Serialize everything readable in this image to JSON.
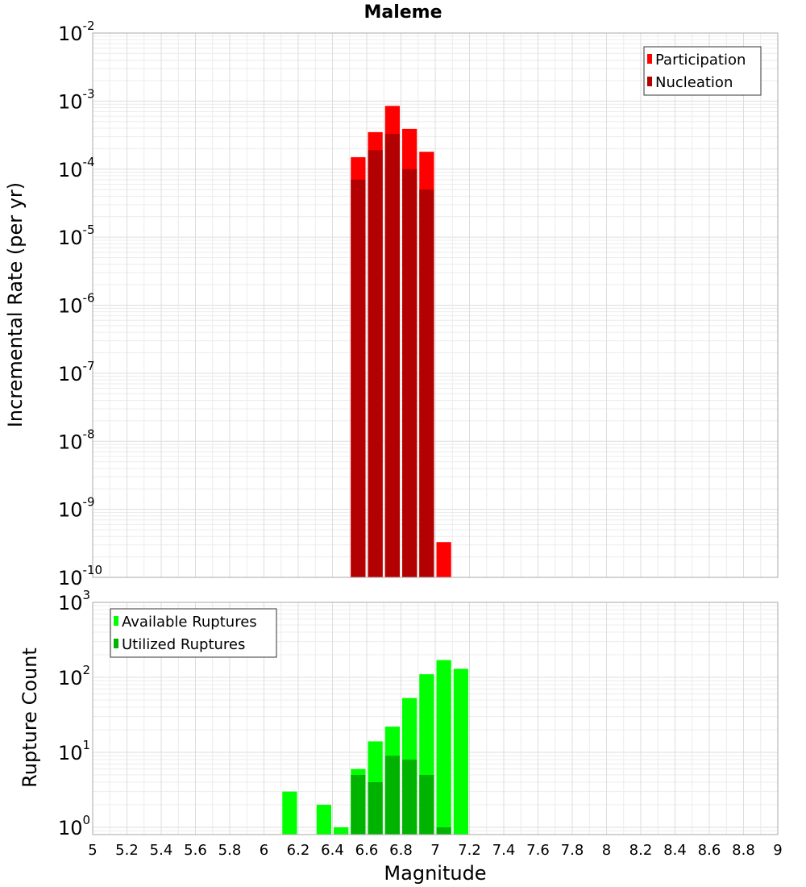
{
  "title": "Maleme",
  "colors": {
    "participation": "#ff0000",
    "nucleation": "#b30000",
    "available": "#00ff00",
    "utilized": "#00b300",
    "grid_minor": "#ececec",
    "grid_major": "#dddddd",
    "frame": "#aaaaaa"
  },
  "chart_data": [
    {
      "type": "bar",
      "title": "Maleme",
      "xlabel": "",
      "ylabel": "Incremental Rate (per yr)",
      "y_scale": "log",
      "ylim": [
        1e-10,
        0.01
      ],
      "xlim": [
        5,
        9
      ],
      "bin_width": 0.1,
      "grid": true,
      "legend_position": "top-right",
      "y_tick_exponents": [
        -2,
        -3,
        -4,
        -5,
        -6,
        -7,
        -8,
        -9,
        -10
      ],
      "series": [
        {
          "name": "Participation",
          "x": [
            6.55,
            6.65,
            6.75,
            6.85,
            6.95,
            7.05
          ],
          "values": [
            0.00015,
            0.00035,
            0.00085,
            0.00039,
            0.00018,
            3.3e-10
          ]
        },
        {
          "name": "Nucleation",
          "x": [
            6.55,
            6.65,
            6.75,
            6.85,
            6.95
          ],
          "values": [
            7e-05,
            0.00019,
            0.00033,
            0.0001,
            5e-05
          ]
        }
      ]
    },
    {
      "type": "bar",
      "xlabel": "Magnitude",
      "ylabel": "Rupture Count",
      "y_scale": "log",
      "ylim": [
        0.8,
        1000
      ],
      "xlim": [
        5,
        9
      ],
      "bin_width": 0.1,
      "grid": true,
      "legend_position": "top-left",
      "y_tick_exponents": [
        3,
        2,
        1,
        0
      ],
      "x_ticks": [
        "5",
        "5.2",
        "5.4",
        "5.6",
        "5.8",
        "6",
        "6.2",
        "6.4",
        "6.6",
        "6.8",
        "7",
        "7.2",
        "7.4",
        "7.6",
        "7.8",
        "8",
        "8.2",
        "8.4",
        "8.6",
        "8.8",
        "9"
      ],
      "series": [
        {
          "name": "Available Ruptures",
          "x": [
            6.15,
            6.35,
            6.45,
            6.55,
            6.65,
            6.75,
            6.85,
            6.95,
            7.05,
            7.15
          ],
          "values": [
            3,
            2,
            1,
            6,
            14,
            22,
            53,
            110,
            170,
            130
          ]
        },
        {
          "name": "Utilized Ruptures",
          "x": [
            6.55,
            6.65,
            6.75,
            6.85,
            6.95,
            7.05
          ],
          "values": [
            5,
            4,
            9,
            8,
            5,
            1
          ]
        }
      ]
    }
  ]
}
